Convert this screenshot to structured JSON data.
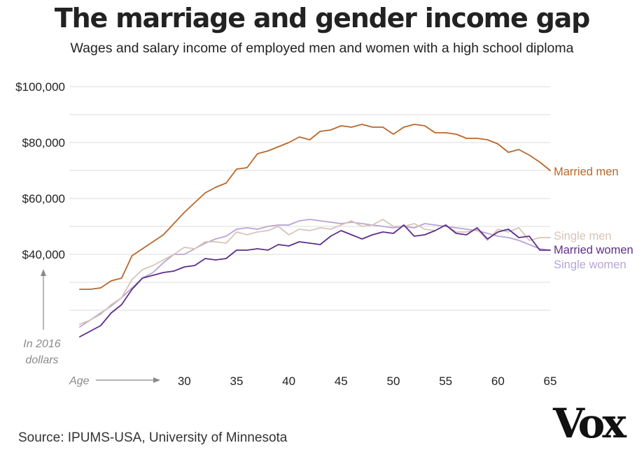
{
  "header": {
    "title": "The marriage and gender income gap",
    "subtitle": "Wages and salary income of employed men and women with a high school diploma"
  },
  "footer": {
    "source": "Source: IPUMS-USA, University of Minnesota",
    "logo_text": "Vox"
  },
  "colors": {
    "married_men": "#b8682a",
    "single_men": "#d8c4b8",
    "married_women": "#5e2d8c",
    "single_women": "#b7a5d4",
    "grid": "#dddddd",
    "axis_note": "#8a8a8a"
  },
  "chart_data": {
    "type": "line",
    "title": "The marriage and gender income gap",
    "subtitle": "Wages and salary income of employed men and women with a high school diploma",
    "xlabel": "Age",
    "ylabel": "In 2016 dollars",
    "xlim": [
      19,
      65
    ],
    "ylim": [
      13000,
      104000
    ],
    "x_ticks": [
      30,
      35,
      40,
      45,
      50,
      55,
      60,
      65
    ],
    "y_ticks": [
      40000,
      60000,
      80000,
      100000
    ],
    "y_tick_labels": [
      "$40,000",
      "$60,000",
      "$80,000",
      "$100,000"
    ],
    "y_minor_gridlines": [
      50000,
      70000,
      90000,
      30000,
      20000
    ],
    "grid": true,
    "legend": "inline labels at right end of lines",
    "x": [
      20,
      21,
      22,
      23,
      24,
      25,
      26,
      27,
      28,
      29,
      30,
      31,
      32,
      33,
      34,
      35,
      36,
      37,
      38,
      39,
      40,
      41,
      42,
      43,
      44,
      45,
      46,
      47,
      48,
      49,
      50,
      51,
      52,
      53,
      54,
      55,
      56,
      57,
      58,
      59,
      60,
      61,
      62,
      63,
      64,
      65
    ],
    "series": [
      {
        "name": "Married men",
        "color_key": "married_men",
        "values": [
          27500,
          27500,
          28000,
          30500,
          31500,
          39500,
          42000,
          44500,
          47000,
          51000,
          55000,
          58500,
          62000,
          64000,
          65500,
          70500,
          71000,
          76000,
          77000,
          78500,
          80000,
          82000,
          81000,
          84000,
          84500,
          86000,
          85500,
          86500,
          85500,
          85500,
          83000,
          85500,
          86500,
          86000,
          83500,
          83500,
          83000,
          81500,
          81500,
          81000,
          79500,
          76500,
          77500,
          75500,
          73000,
          70000
        ]
      },
      {
        "name": "Single men",
        "color_key": "single_men",
        "values": [
          15000,
          16500,
          18500,
          22000,
          24500,
          31000,
          34500,
          36000,
          38000,
          40000,
          42500,
          42000,
          44500,
          44500,
          44000,
          48000,
          47000,
          48000,
          48500,
          50000,
          47000,
          49000,
          48500,
          49500,
          49000,
          50500,
          52000,
          50000,
          50500,
          52500,
          50000,
          50000,
          51000,
          49000,
          48500,
          50500,
          48000,
          48000,
          49000,
          45000,
          49000,
          48000,
          49500,
          45000,
          46000,
          46000
        ]
      },
      {
        "name": "Married women",
        "color_key": "married_women",
        "values": [
          10500,
          12500,
          14500,
          19000,
          22000,
          27500,
          31500,
          32500,
          33500,
          34000,
          35500,
          36000,
          38500,
          38000,
          38500,
          41500,
          41500,
          42000,
          41500,
          43500,
          43000,
          44500,
          44000,
          43500,
          46500,
          48500,
          47000,
          45500,
          47000,
          48000,
          47500,
          50500,
          46500,
          47000,
          48500,
          50500,
          47500,
          47000,
          49500,
          45500,
          48000,
          49000,
          46000,
          46500,
          41500,
          41500
        ]
      },
      {
        "name": "Single women",
        "color_key": "single_women",
        "values": [
          14000,
          16500,
          19000,
          21500,
          24500,
          28000,
          31500,
          33500,
          37000,
          40000,
          40000,
          42000,
          44000,
          45500,
          46500,
          49000,
          49500,
          49000,
          50000,
          50500,
          50500,
          52000,
          52500,
          52000,
          51500,
          51000,
          51500,
          51000,
          50500,
          50000,
          49500,
          50000,
          49500,
          51000,
          50500,
          50000,
          49500,
          49000,
          48500,
          47500,
          46500,
          46000,
          45000,
          43500,
          42000,
          41500
        ]
      }
    ]
  }
}
